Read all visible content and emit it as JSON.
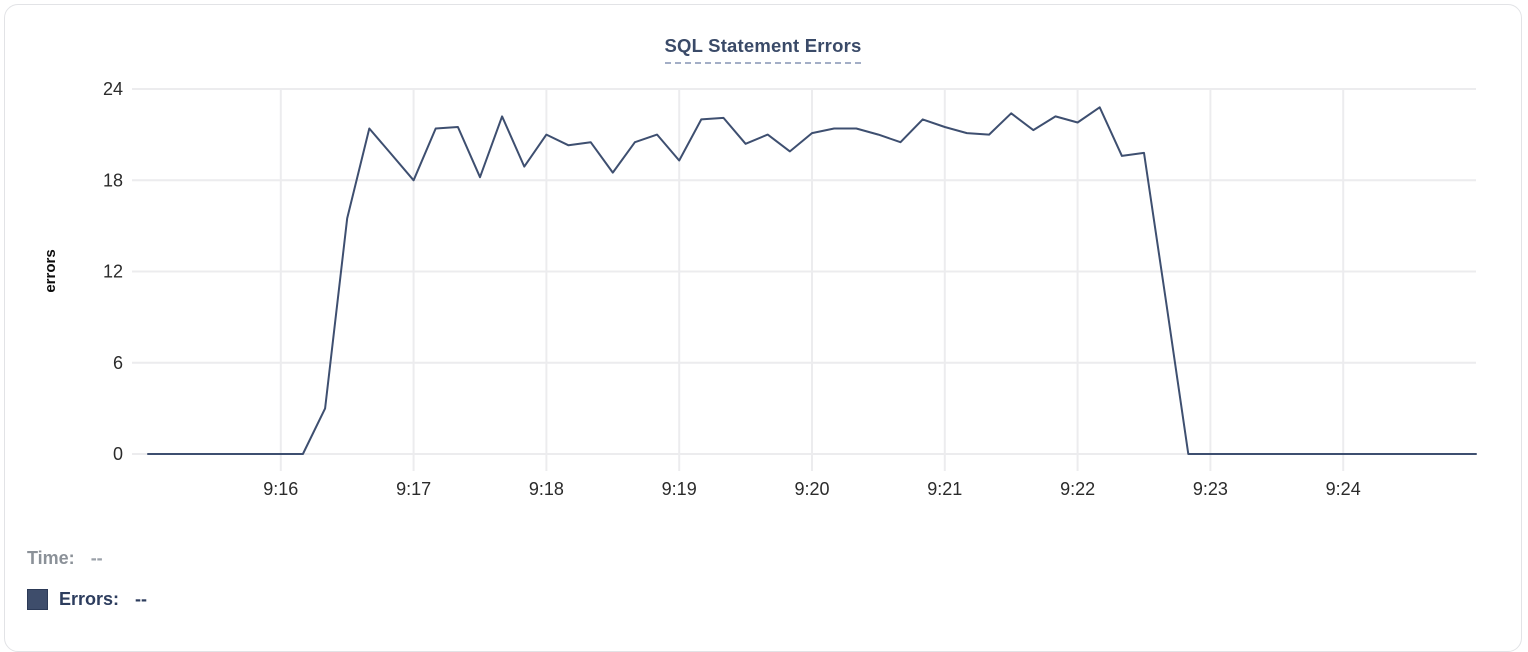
{
  "chart": {
    "title": "SQL Statement Errors"
  },
  "legend": {
    "time_label": "Time:",
    "time_value": "--",
    "errors_label": "Errors:",
    "errors_value": "--"
  },
  "colors": {
    "line": "#3e4f70",
    "grid": "#ececee",
    "title": "#3a4a68",
    "tick_text": "#2b2b2b",
    "legend_gray": "#8b9198",
    "legend_navy": "#2d3d5e",
    "swatch": "#3e4d6b",
    "title_underline": "#a3aec6"
  },
  "chart_data": {
    "type": "line",
    "title": "SQL Statement Errors",
    "xlabel": "",
    "ylabel": "errors",
    "ylim": [
      0,
      24
    ],
    "y_ticks": [
      0,
      6,
      12,
      18,
      24
    ],
    "x_tick_labels": [
      "9:16",
      "9:17",
      "9:18",
      "9:19",
      "9:20",
      "9:21",
      "9:22",
      "9:23",
      "9:24"
    ],
    "x_tick_offsets_min": [
      1,
      2,
      3,
      4,
      5,
      6,
      7,
      8,
      9
    ],
    "x_start": "9:15:00",
    "x_end": "9:25:00",
    "interval_seconds": 10,
    "grid": true,
    "legend_position": "bottom-left",
    "series": [
      {
        "name": "Errors",
        "values": [
          0,
          0,
          0,
          0,
          0,
          0,
          0,
          0,
          3,
          15.5,
          21.4,
          19.7,
          18,
          21.4,
          21.5,
          18.2,
          22.2,
          18.9,
          21,
          20.3,
          20.5,
          18.5,
          20.5,
          21,
          19.3,
          22,
          22.1,
          20.4,
          21,
          19.9,
          21.1,
          21.4,
          21.4,
          21,
          20.5,
          22,
          21.5,
          21.1,
          21,
          22.4,
          21.3,
          22.2,
          21.8,
          22.8,
          19.6,
          19.8,
          10,
          0,
          0,
          0,
          0,
          0,
          0,
          0,
          0,
          0,
          0,
          0,
          0,
          0,
          0
        ]
      }
    ]
  }
}
